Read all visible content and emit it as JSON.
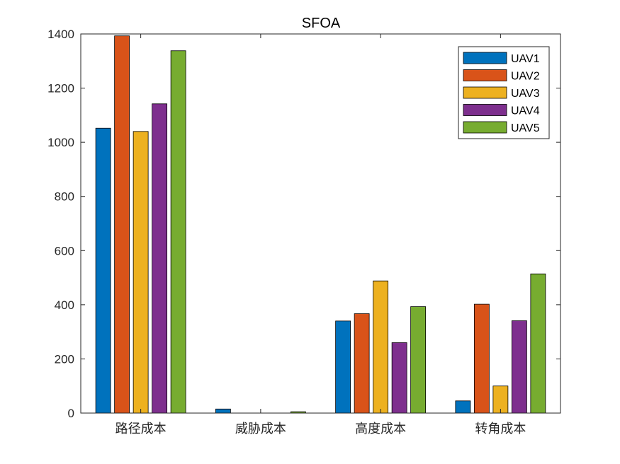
{
  "chart_data": {
    "type": "bar",
    "title": "SFOA",
    "xlabel": "",
    "ylabel": "",
    "categories": [
      "路径成本",
      "威胁成本",
      "高度成本",
      "转角成本"
    ],
    "ylim": [
      0,
      1400
    ],
    "yticks": [
      0,
      200,
      400,
      600,
      800,
      1000,
      1200,
      1400
    ],
    "grid": false,
    "legend_position": "top-right",
    "series": [
      {
        "name": "UAV1",
        "color": "#0072BD",
        "values": [
          1052,
          15,
          340,
          45
        ]
      },
      {
        "name": "UAV2",
        "color": "#D95319",
        "values": [
          1393,
          0,
          367,
          402
        ]
      },
      {
        "name": "UAV3",
        "color": "#EDB120",
        "values": [
          1040,
          0,
          488,
          100
        ]
      },
      {
        "name": "UAV4",
        "color": "#7E2F8E",
        "values": [
          1142,
          0,
          260,
          341
        ]
      },
      {
        "name": "UAV5",
        "color": "#77AC30",
        "values": [
          1338,
          5,
          393,
          514
        ]
      }
    ]
  }
}
